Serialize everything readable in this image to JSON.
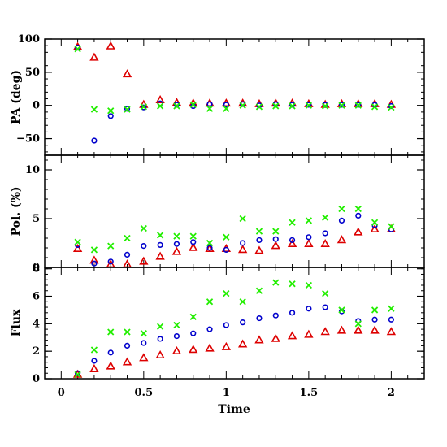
{
  "chart_data": {
    "type": "scatter",
    "xlabel": "Time",
    "xlim": [
      -0.1,
      2.2
    ],
    "x_ticks": [
      0,
      0.5,
      1,
      1.5,
      2
    ],
    "x_tick_labels": [
      "0",
      "0.5",
      "1",
      "1.5",
      "2"
    ],
    "grid": false,
    "colors": {
      "triangle": "#dd0000",
      "circle": "#0000cc",
      "cross": "#22ee00"
    },
    "x": [
      0.1,
      0.2,
      0.3,
      0.4,
      0.5,
      0.6,
      0.7,
      0.8,
      0.9,
      1.0,
      1.1,
      1.2,
      1.3,
      1.4,
      1.5,
      1.6,
      1.7,
      1.8,
      1.9,
      2.0
    ],
    "panels": [
      {
        "ylabel": "PA (deg)",
        "ylim": [
          -75,
          100
        ],
        "y_ticks": [
          -50,
          0,
          50,
          100
        ],
        "y_tick_labels": [
          "−50",
          "0",
          "50",
          "100"
        ],
        "series": [
          {
            "marker": "triangle",
            "values": [
              88,
              72,
              89,
              47,
              1,
              8,
              4,
              3,
              3,
              3,
              3,
              2,
              3,
              3,
              2,
              1,
              2,
              2,
              2,
              1
            ]
          },
          {
            "marker": "circle",
            "values": [
              87,
              -53,
              -16,
              -5,
              -3,
              3,
              1,
              -1,
              2,
              1,
              2,
              0,
              2,
              1,
              1,
              1,
              1,
              1,
              1,
              -1
            ]
          },
          {
            "marker": "cross",
            "values": [
              85,
              -6,
              -8,
              -6,
              -2,
              -1,
              -1,
              1,
              -5,
              -5,
              0,
              -2,
              -1,
              -1,
              0,
              -1,
              0,
              0,
              -2,
              -3
            ]
          }
        ]
      },
      {
        "ylabel": "Pol. (%)",
        "ylim": [
          0,
          11.5
        ],
        "y_ticks": [
          0,
          5,
          10
        ],
        "y_tick_labels": [
          "0",
          "5",
          "10"
        ],
        "series": [
          {
            "marker": "triangle",
            "values": [
              1.9,
              0.7,
              0.3,
              0.3,
              0.6,
              1.1,
              1.6,
              2.0,
              1.9,
              1.9,
              1.8,
              1.7,
              2.2,
              2.4,
              2.4,
              2.4,
              2.8,
              3.6,
              3.9,
              3.9
            ]
          },
          {
            "marker": "circle",
            "values": [
              2.3,
              0.4,
              0.6,
              1.3,
              2.2,
              2.3,
              2.4,
              2.6,
              2.0,
              1.8,
              2.5,
              2.8,
              2.9,
              2.8,
              3.1,
              3.5,
              4.8,
              5.3,
              4.3,
              3.9
            ]
          },
          {
            "marker": "cross",
            "values": [
              2.6,
              1.8,
              2.2,
              3.0,
              4.0,
              3.3,
              3.2,
              3.2,
              2.5,
              3.1,
              5.0,
              3.7,
              3.7,
              4.6,
              4.8,
              5.1,
              6.0,
              6.0,
              4.6,
              4.2
            ]
          }
        ]
      },
      {
        "ylabel": "Flux",
        "ylim": [
          0,
          8.1
        ],
        "y_ticks": [
          0,
          2,
          4,
          6,
          8
        ],
        "y_tick_labels": [
          "0",
          "2",
          "4",
          "6",
          "8"
        ],
        "series": [
          {
            "marker": "triangle",
            "values": [
              0.3,
              0.7,
              0.9,
              1.2,
              1.5,
              1.7,
              2.0,
              2.1,
              2.2,
              2.3,
              2.5,
              2.8,
              2.9,
              3.1,
              3.2,
              3.4,
              3.5,
              3.5,
              3.5,
              3.4
            ]
          },
          {
            "marker": "circle",
            "values": [
              0.4,
              1.3,
              1.9,
              2.4,
              2.6,
              2.9,
              3.1,
              3.3,
              3.6,
              3.9,
              4.1,
              4.4,
              4.6,
              4.8,
              5.1,
              5.2,
              4.9,
              4.2,
              4.3,
              4.3
            ]
          },
          {
            "marker": "cross",
            "values": [
              0.3,
              2.1,
              3.4,
              3.4,
              3.3,
              3.8,
              3.9,
              4.5,
              5.6,
              6.2,
              5.6,
              6.4,
              7.0,
              6.9,
              6.8,
              6.2,
              5.0,
              4.0,
              5.0,
              5.1
            ]
          }
        ]
      }
    ]
  }
}
